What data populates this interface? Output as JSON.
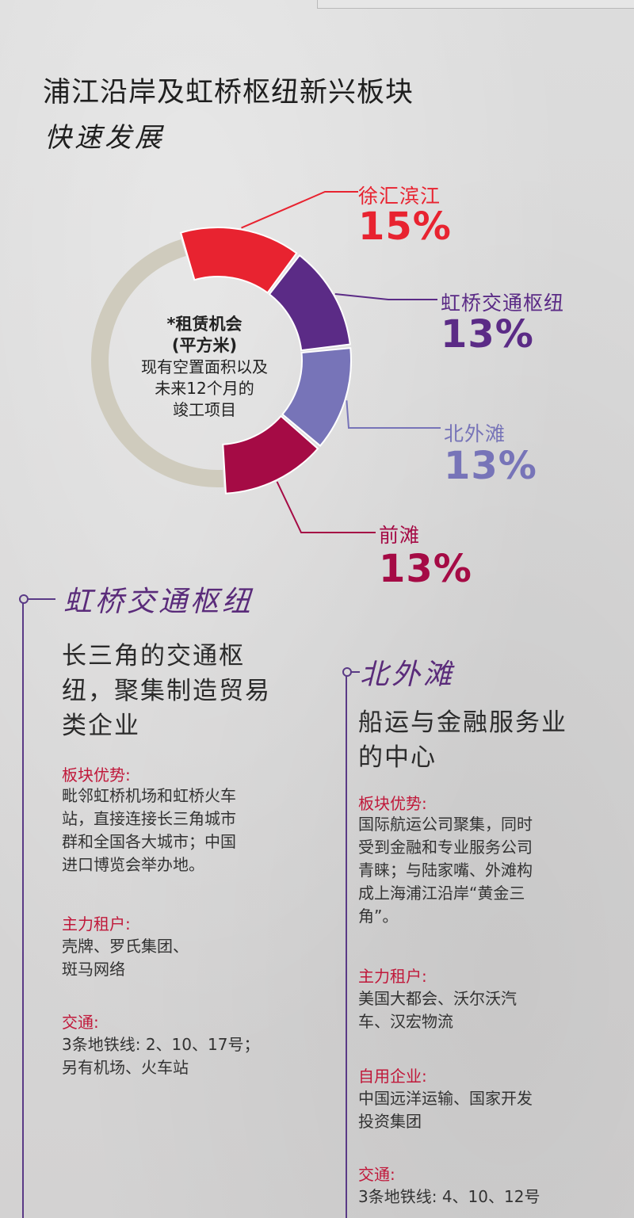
{
  "title_line1": "浦江沿岸及虹桥枢纽新兴板块",
  "title_line2": "快速发展",
  "chart_data": {
    "type": "pie",
    "title": "浦江沿岸及虹桥枢纽新兴板块 快速发展",
    "center_text": [
      "*租赁机会",
      "(平方米)",
      "现有空置面积以及",
      "未来12个月的",
      "竣工项目"
    ],
    "slices": [
      {
        "label": "徐汇滨江",
        "value": 15,
        "display": "15%",
        "color": "#e82330"
      },
      {
        "label": "虹桥交通枢纽",
        "value": 13,
        "display": "13%",
        "color": "#5b2b86"
      },
      {
        "label": "北外滩",
        "value": 13,
        "display": "13%",
        "color": "#7774b8"
      },
      {
        "label": "前滩",
        "value": 13,
        "display": "13%",
        "color": "#a50b45"
      }
    ],
    "remainder_color": "#cfcbbd"
  },
  "hongqiao": {
    "heading": "虹桥交通枢纽",
    "subtitle": [
      "长三角的交通枢",
      "纽，聚集制造贸易",
      "类企业"
    ],
    "advantage_label": "板块优势:",
    "advantage_text": [
      "毗邻虹桥机场和虹桥火车",
      "站，直接连接长三角城市",
      "群和全国各大城市；中国",
      "进口博览会举办地。"
    ],
    "tenants_label": "主力租户:",
    "tenants_text": [
      "壳牌、罗氏集团、",
      "斑马网络"
    ],
    "transport_label": "交通:",
    "transport_text": [
      "3条地铁线: 2、10、17号；",
      "另有机场、火车站"
    ]
  },
  "north_bund": {
    "heading": "北外滩",
    "subtitle": [
      "船运与金融服务业",
      "的中心"
    ],
    "advantage_label": "板块优势:",
    "advantage_text": [
      "国际航运公司聚集，同时",
      "受到金融和专业服务公司",
      "青睐；与陆家嘴、外滩构",
      "成上海浦江沿岸“黄金三",
      "角”。"
    ],
    "tenants_label": "主力租户:",
    "tenants_text": [
      "美国大都会、沃尔沃汽",
      "车、汉宏物流"
    ],
    "owner_label": "自用企业:",
    "owner_text": [
      "中国远洋运输、国家开发",
      "投资集团"
    ],
    "transport_label": "交通:",
    "transport_text": [
      "3条地铁线: 4、10、12号"
    ]
  }
}
